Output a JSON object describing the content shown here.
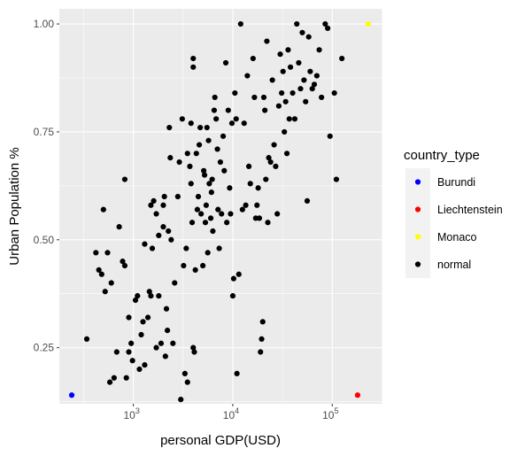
{
  "chart_data": {
    "type": "scatter",
    "xlabel": "personal GDP(USD)",
    "ylabel": "Urban Population %",
    "x_scale": "log10",
    "xlim": [
      180,
      320000
    ],
    "ylim": [
      0.12,
      1.035
    ],
    "x_ticks": [
      {
        "value": 1000,
        "base": "10",
        "exp": "3"
      },
      {
        "value": 10000,
        "base": "10",
        "exp": "4"
      },
      {
        "value": 100000,
        "base": "10",
        "exp": "5"
      }
    ],
    "y_ticks": [
      {
        "value": 0.25,
        "label": "0.25"
      },
      {
        "value": 0.5,
        "label": "0.50"
      },
      {
        "value": 0.75,
        "label": "0.75"
      },
      {
        "value": 1.0,
        "label": "1.00"
      }
    ],
    "grid": true,
    "legend": {
      "title": "country_type",
      "position": "right",
      "entries": [
        {
          "label": "Burundi",
          "color": "#0000ff"
        },
        {
          "label": "Liechtenstein",
          "color": "#ff0000"
        },
        {
          "label": "Monaco",
          "color": "#ffff00"
        },
        {
          "label": "normal",
          "color": "#000000"
        }
      ]
    },
    "series": [
      {
        "name": "Burundi",
        "color": "#0000ff",
        "points": [
          [
            240,
            0.14
          ]
        ]
      },
      {
        "name": "Liechtenstein",
        "color": "#ff0000",
        "points": [
          [
            180000,
            0.14
          ]
        ]
      },
      {
        "name": "Monaco",
        "color": "#ffff00",
        "points": [
          [
            230000,
            1.0
          ]
        ]
      },
      {
        "name": "normal",
        "color": "#000000",
        "points": [
          [
            340,
            0.27
          ],
          [
            420,
            0.47
          ],
          [
            450,
            0.43
          ],
          [
            480,
            0.42
          ],
          [
            500,
            0.57
          ],
          [
            520,
            0.38
          ],
          [
            550,
            0.47
          ],
          [
            580,
            0.17
          ],
          [
            600,
            0.4
          ],
          [
            640,
            0.18
          ],
          [
            680,
            0.24
          ],
          [
            720,
            0.53
          ],
          [
            780,
            0.45
          ],
          [
            820,
            0.44
          ],
          [
            820,
            0.64
          ],
          [
            850,
            0.18
          ],
          [
            900,
            0.24
          ],
          [
            900,
            0.32
          ],
          [
            950,
            0.26
          ],
          [
            980,
            0.22
          ],
          [
            1050,
            0.36
          ],
          [
            1100,
            0.37
          ],
          [
            1150,
            0.2
          ],
          [
            1200,
            0.28
          ],
          [
            1250,
            0.31
          ],
          [
            1300,
            0.21
          ],
          [
            1300,
            0.49
          ],
          [
            1400,
            0.32
          ],
          [
            1450,
            0.38
          ],
          [
            1500,
            0.37
          ],
          [
            1500,
            0.58
          ],
          [
            1550,
            0.48
          ],
          [
            1600,
            0.59
          ],
          [
            1700,
            0.25
          ],
          [
            1700,
            0.56
          ],
          [
            1800,
            0.37
          ],
          [
            1800,
            0.51
          ],
          [
            1900,
            0.26
          ],
          [
            2000,
            0.58
          ],
          [
            2000,
            0.53
          ],
          [
            2050,
            0.6
          ],
          [
            2100,
            0.23
          ],
          [
            2150,
            0.34
          ],
          [
            2200,
            0.29
          ],
          [
            2250,
            0.52
          ],
          [
            2300,
            0.76
          ],
          [
            2350,
            0.69
          ],
          [
            2400,
            0.5
          ],
          [
            2500,
            0.26
          ],
          [
            2600,
            0.4
          ],
          [
            2800,
            0.6
          ],
          [
            2900,
            0.68
          ],
          [
            3000,
            0.13
          ],
          [
            3100,
            0.78
          ],
          [
            3200,
            0.44
          ],
          [
            3300,
            0.19
          ],
          [
            3400,
            0.48
          ],
          [
            3500,
            0.7
          ],
          [
            3500,
            0.17
          ],
          [
            3700,
            0.67
          ],
          [
            3800,
            0.63
          ],
          [
            3800,
            0.77
          ],
          [
            3900,
            0.54
          ],
          [
            4000,
            0.25
          ],
          [
            4000,
            0.9
          ],
          [
            4000,
            0.92
          ],
          [
            4100,
            0.24
          ],
          [
            4200,
            0.43
          ],
          [
            4300,
            0.7
          ],
          [
            4400,
            0.57
          ],
          [
            4500,
            0.6
          ],
          [
            4600,
            0.72
          ],
          [
            4700,
            0.76
          ],
          [
            4800,
            0.56
          ],
          [
            5000,
            0.44
          ],
          [
            5100,
            0.66
          ],
          [
            5200,
            0.65
          ],
          [
            5300,
            0.54
          ],
          [
            5400,
            0.58
          ],
          [
            5500,
            0.76
          ],
          [
            5600,
            0.47
          ],
          [
            5700,
            0.73
          ],
          [
            5800,
            0.63
          ],
          [
            6000,
            0.55
          ],
          [
            6100,
            0.61
          ],
          [
            6200,
            0.64
          ],
          [
            6300,
            0.52
          ],
          [
            6500,
            0.8
          ],
          [
            6600,
            0.83
          ],
          [
            6800,
            0.78
          ],
          [
            7000,
            0.71
          ],
          [
            7100,
            0.57
          ],
          [
            7300,
            0.48
          ],
          [
            7500,
            0.68
          ],
          [
            7700,
            0.56
          ],
          [
            8000,
            0.74
          ],
          [
            8200,
            0.66
          ],
          [
            8500,
            0.91
          ],
          [
            8700,
            0.54
          ],
          [
            9000,
            0.8
          ],
          [
            9300,
            0.62
          ],
          [
            9500,
            0.56
          ],
          [
            9800,
            0.77
          ],
          [
            10000,
            0.37
          ],
          [
            10200,
            0.41
          ],
          [
            10500,
            0.84
          ],
          [
            10800,
            0.78
          ],
          [
            11000,
            0.19
          ],
          [
            11500,
            0.42
          ],
          [
            12000,
            1.0
          ],
          [
            12500,
            0.57
          ],
          [
            13000,
            0.77
          ],
          [
            13500,
            0.58
          ],
          [
            14000,
            0.88
          ],
          [
            14500,
            0.67
          ],
          [
            15000,
            0.63
          ],
          [
            16000,
            0.92
          ],
          [
            16500,
            0.83
          ],
          [
            17000,
            0.55
          ],
          [
            17500,
            0.58
          ],
          [
            18000,
            0.62
          ],
          [
            18500,
            0.55
          ],
          [
            19000,
            0.24
          ],
          [
            19500,
            0.27
          ],
          [
            20000,
            0.31
          ],
          [
            20500,
            0.83
          ],
          [
            21000,
            0.8
          ],
          [
            21500,
            0.64
          ],
          [
            22000,
            0.96
          ],
          [
            22500,
            0.54
          ],
          [
            23000,
            0.69
          ],
          [
            24000,
            0.68
          ],
          [
            25000,
            0.87
          ],
          [
            26000,
            0.72
          ],
          [
            27000,
            0.67
          ],
          [
            28000,
            0.56
          ],
          [
            29000,
            0.81
          ],
          [
            30000,
            0.93
          ],
          [
            31000,
            0.84
          ],
          [
            32000,
            0.89
          ],
          [
            33000,
            0.75
          ],
          [
            34000,
            0.82
          ],
          [
            35000,
            0.7
          ],
          [
            36000,
            0.94
          ],
          [
            37000,
            0.78
          ],
          [
            38000,
            0.9
          ],
          [
            40000,
            0.84
          ],
          [
            42000,
            0.78
          ],
          [
            44000,
            1.0
          ],
          [
            46000,
            0.91
          ],
          [
            48000,
            0.85
          ],
          [
            50000,
            0.98
          ],
          [
            52000,
            0.87
          ],
          [
            54000,
            0.82
          ],
          [
            56000,
            0.59
          ],
          [
            58000,
            0.97
          ],
          [
            60000,
            0.89
          ],
          [
            63000,
            0.85
          ],
          [
            66000,
            0.86
          ],
          [
            70000,
            0.88
          ],
          [
            74000,
            0.94
          ],
          [
            78000,
            0.83
          ],
          [
            85000,
            1.0
          ],
          [
            90000,
            0.99
          ],
          [
            95000,
            0.74
          ],
          [
            105000,
            0.84
          ],
          [
            110000,
            0.64
          ],
          [
            125000,
            0.92
          ]
        ]
      }
    ]
  }
}
